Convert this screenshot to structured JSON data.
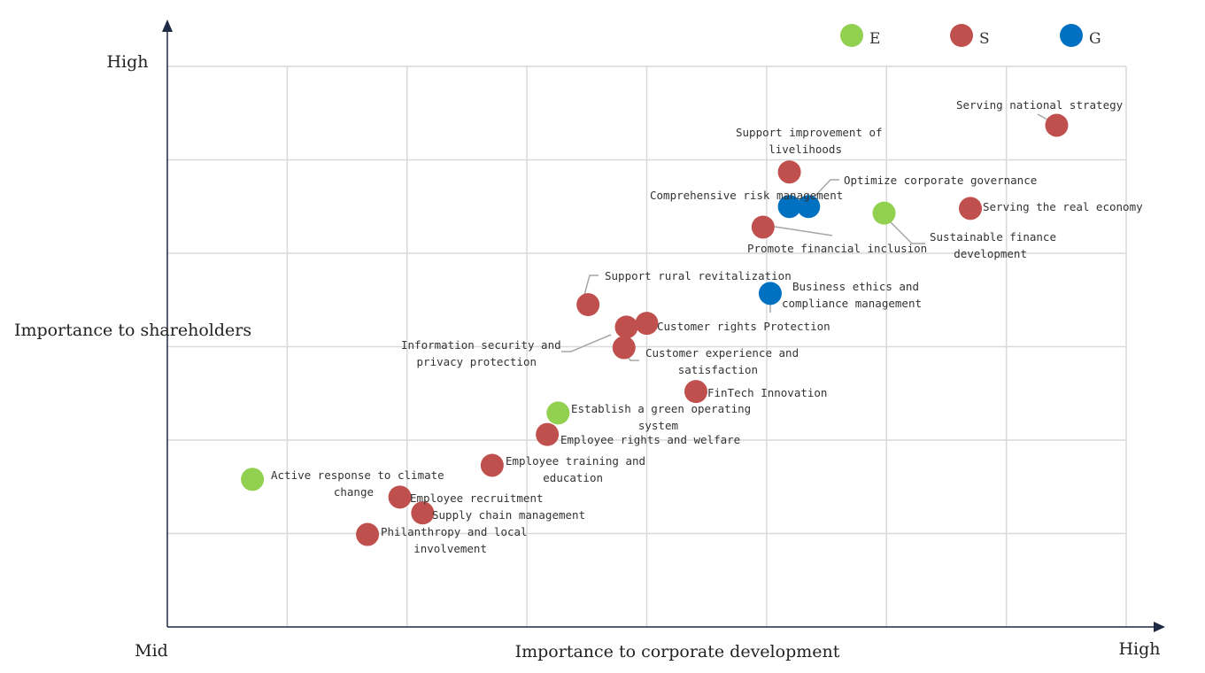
{
  "chart_data": {
    "type": "scatter",
    "title": "",
    "xlabel": "Importance to corporate development",
    "ylabel": "Importance to shareholders",
    "x_tick_labels": [
      "Mid",
      "High"
    ],
    "y_tick_labels": [
      "High"
    ],
    "xlim": [
      0,
      8
    ],
    "ylim": [
      0,
      6
    ],
    "grid": true,
    "legend_position": "top-right",
    "colors": {
      "E": "#92d050",
      "S": "#c0504d",
      "G": "#0070c0"
    },
    "series": [
      {
        "name": "E",
        "points": [
          {
            "label": "Active response to climate change",
            "x": 0.71,
            "y": 1.58
          },
          {
            "label": "Establish a green operating system",
            "x": 3.26,
            "y": 2.29
          },
          {
            "label": "Sustainable finance development",
            "x": 5.98,
            "y": 4.43
          }
        ]
      },
      {
        "name": "S",
        "points": [
          {
            "label": "Serving national strategy",
            "x": 7.42,
            "y": 5.37
          },
          {
            "label": "Support improvement of livelihoods",
            "x": 5.19,
            "y": 4.87
          },
          {
            "label": "Serving the real economy",
            "x": 6.7,
            "y": 4.48
          },
          {
            "label": "Promote financial inclusion",
            "x": 4.97,
            "y": 4.28
          },
          {
            "label": "Support rural revitalization",
            "x": 3.51,
            "y": 3.45
          },
          {
            "label": "Customer rights Protection",
            "x": 4.0,
            "y": 3.25
          },
          {
            "label": "Information security and privacy protection",
            "x": 3.83,
            "y": 3.21
          },
          {
            "label": "Customer experience and satisfaction",
            "x": 3.81,
            "y": 2.99
          },
          {
            "label": "FinTech Innovation",
            "x": 4.41,
            "y": 2.52
          },
          {
            "label": "Employee rights and welfare",
            "x": 3.17,
            "y": 2.06
          },
          {
            "label": "Employee training and education",
            "x": 2.71,
            "y": 1.73
          },
          {
            "label": "Employee recruitment",
            "x": 1.94,
            "y": 1.39
          },
          {
            "label": "Supply chain management",
            "x": 2.13,
            "y": 1.22
          },
          {
            "label": "Philanthropy and local involvement",
            "x": 1.67,
            "y": 0.99
          }
        ]
      },
      {
        "name": "G",
        "points": [
          {
            "label": "Comprehensive risk management",
            "x": 5.19,
            "y": 4.5
          },
          {
            "label": "Optimize corporate governance",
            "x": 5.35,
            "y": 4.5
          },
          {
            "label": "Business ethics and compliance management",
            "x": 5.03,
            "y": 3.57
          }
        ]
      }
    ]
  }
}
